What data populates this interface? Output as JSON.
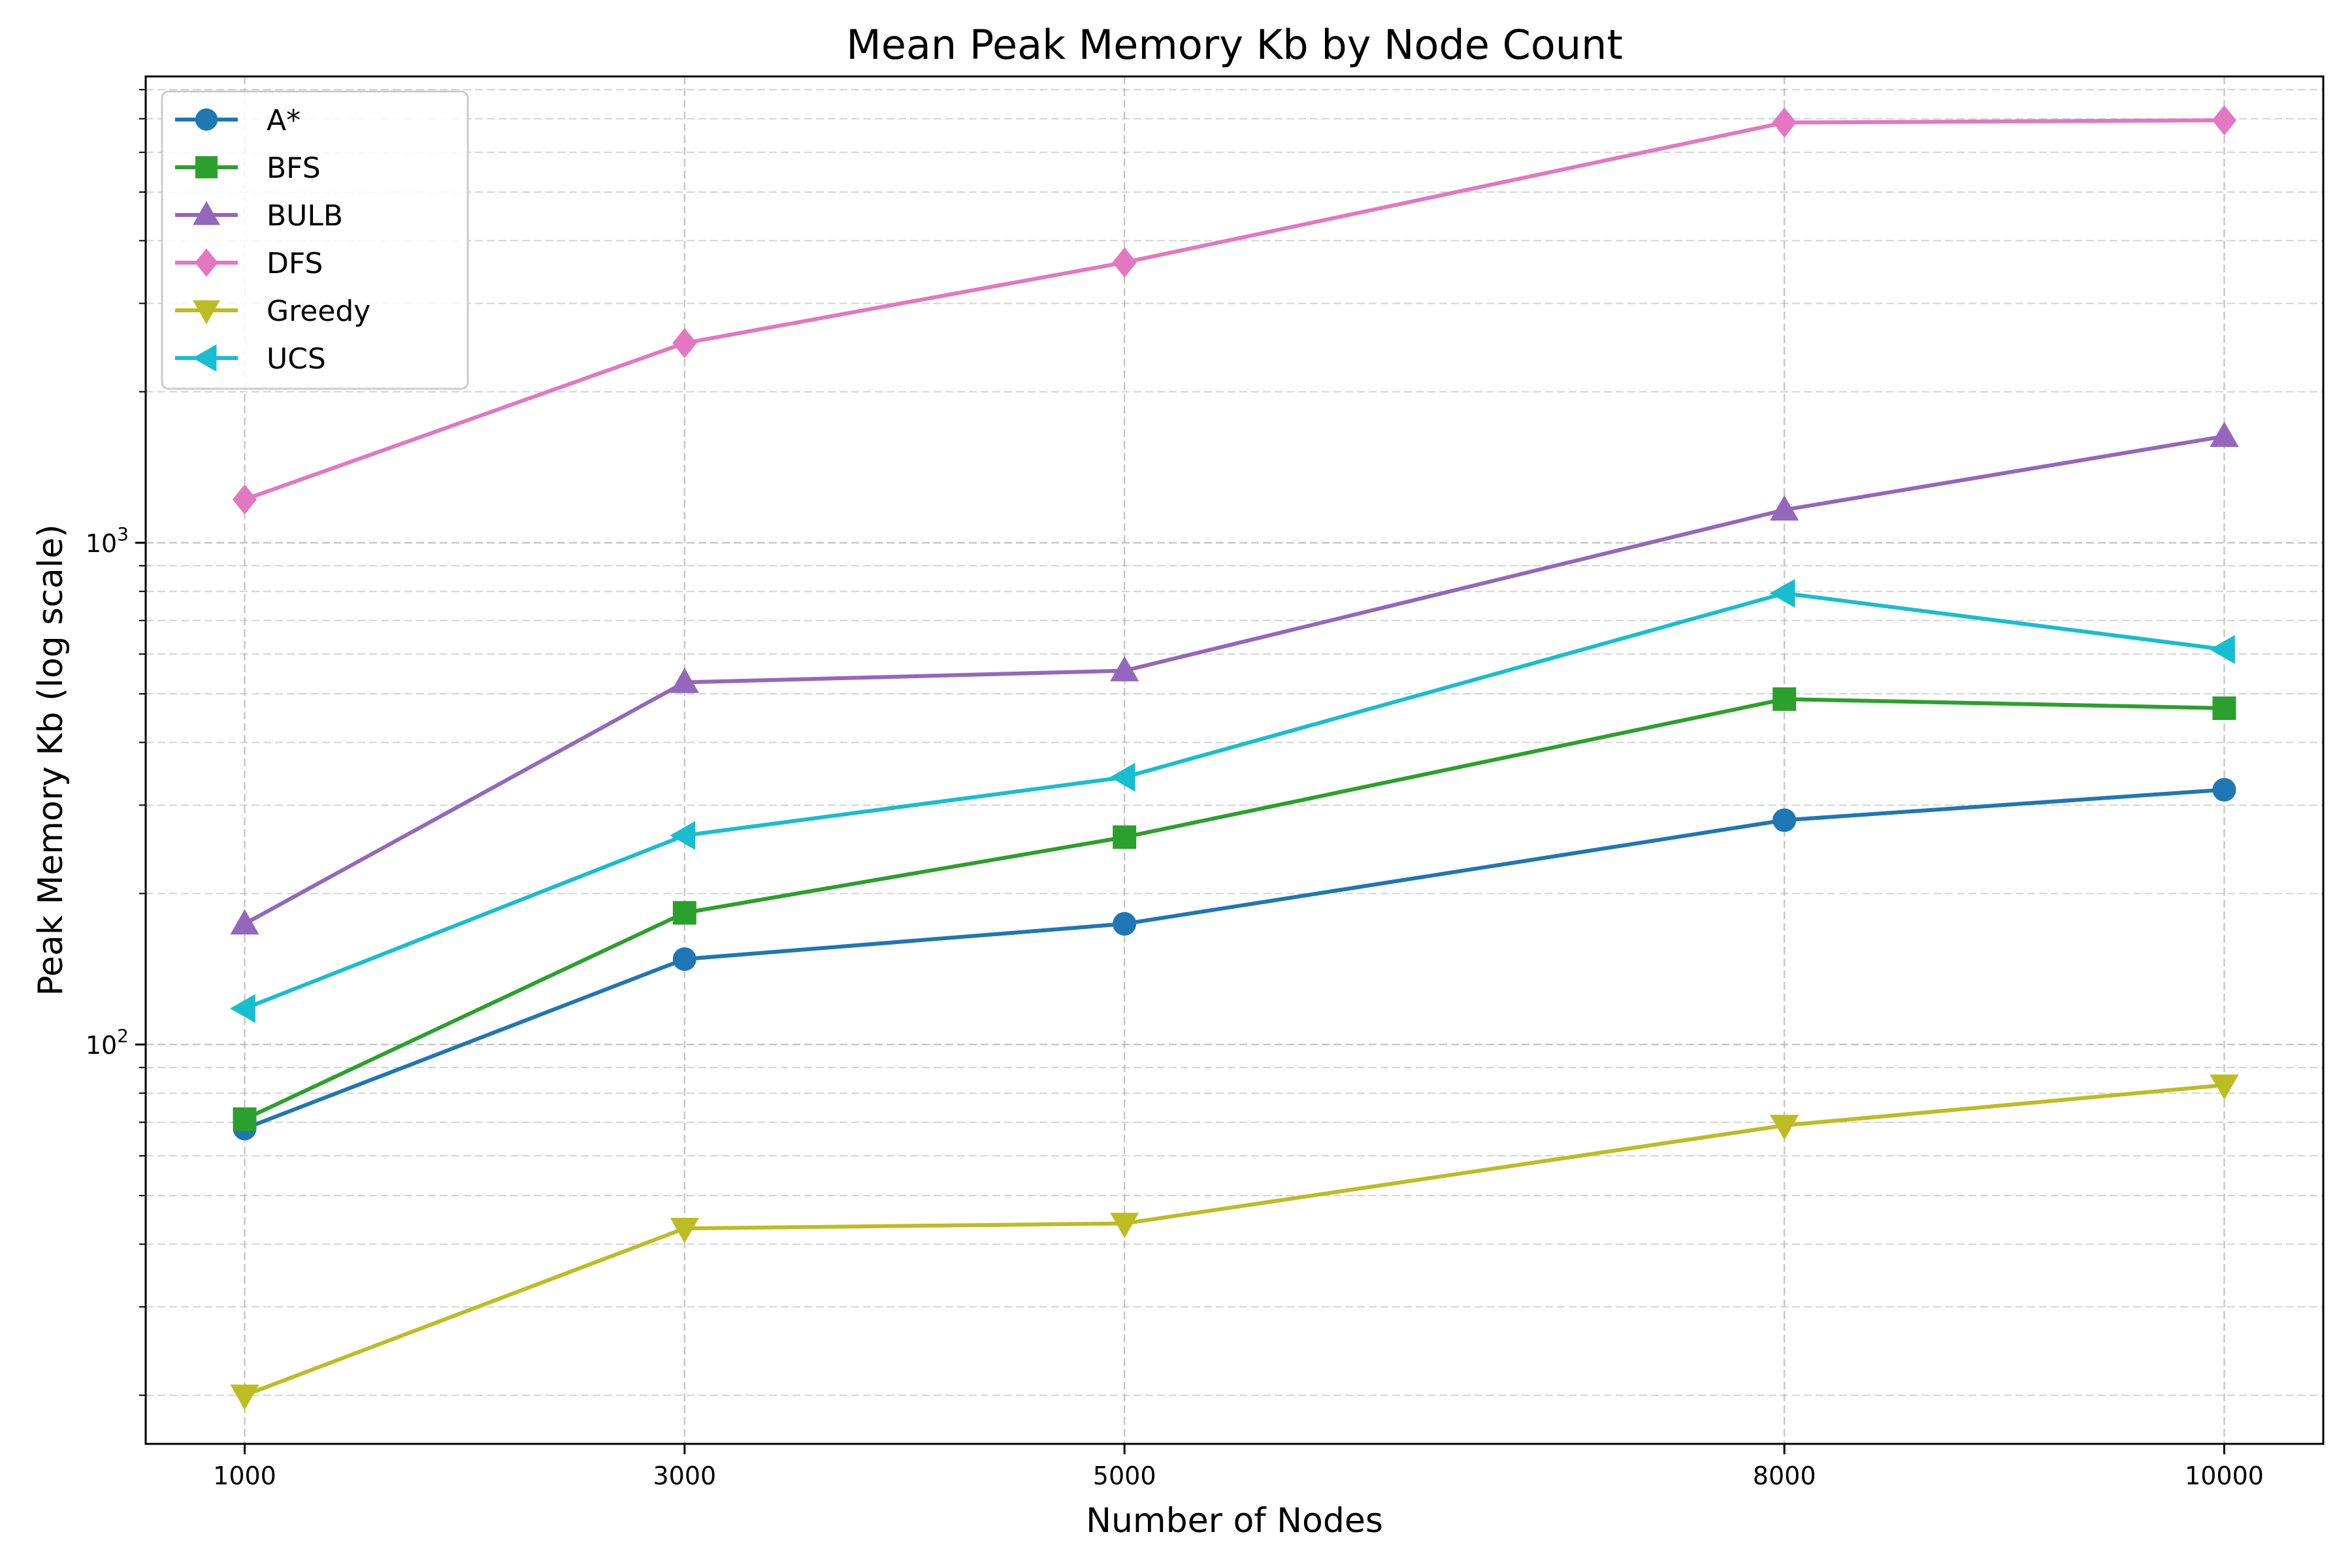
{
  "chart_data": {
    "type": "line",
    "title": "Mean Peak Memory Kb by Node Count",
    "xlabel": "Number of Nodes",
    "ylabel": "Peak Memory Kb (log scale)",
    "yscale": "log",
    "ylim": [
      16,
      8500
    ],
    "xlim": [
      550,
      10450
    ],
    "grid": true,
    "legend_position": "top-left",
    "x": [
      1000,
      3000,
      5000,
      8000,
      10000
    ],
    "x_tick_labels": [
      "1000",
      "3000",
      "5000",
      "8000",
      "10000"
    ],
    "y_tick_labels": [
      {
        "value": 100,
        "base": "10",
        "exp": "2"
      },
      {
        "value": 1000,
        "base": "10",
        "exp": "3"
      }
    ],
    "series": [
      {
        "name": "A*",
        "color": "#1f77b4",
        "marker": "circle",
        "values": [
          68,
          148,
          174,
          280,
          322
        ]
      },
      {
        "name": "BFS",
        "color": "#2ca02c",
        "marker": "square",
        "values": [
          71,
          183,
          259,
          488,
          468
        ]
      },
      {
        "name": "BULB",
        "color": "#9467bd",
        "marker": "triangle-up",
        "values": [
          174,
          527,
          556,
          1163,
          1630
        ]
      },
      {
        "name": "DFS",
        "color": "#e377c2",
        "marker": "diamond",
        "values": [
          1220,
          2500,
          3620,
          6880,
          6950
        ]
      },
      {
        "name": "Greedy",
        "color": "#bcbd22",
        "marker": "triangle-down",
        "values": [
          20,
          43,
          44,
          69,
          83
        ]
      },
      {
        "name": "UCS",
        "color": "#17becf",
        "marker": "triangle-left",
        "values": [
          118,
          261,
          341,
          793,
          613
        ]
      }
    ]
  }
}
